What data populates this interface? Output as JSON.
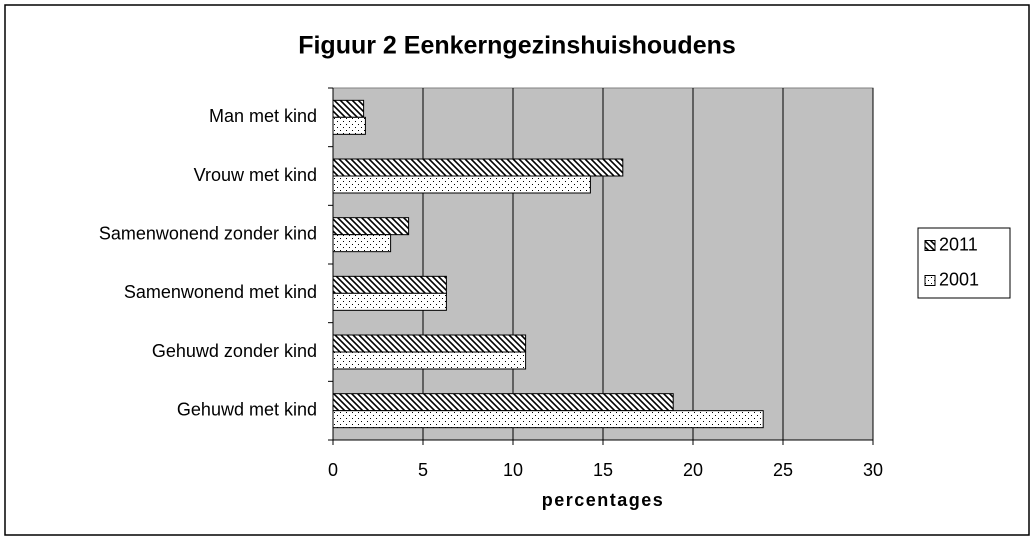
{
  "chart_data": {
    "type": "barh",
    "title": "Figuur 2 Eenkerngezinshuishoudens",
    "xlabel": "percentages",
    "categories": [
      "Man met kind",
      "Vrouw met kind",
      "Samenwonend zonder kind",
      "Samenwonend met kind",
      "Gehuwd zonder kind",
      "Gehuwd met kind"
    ],
    "series": [
      {
        "name": "2011",
        "color": "#000000",
        "pattern": "hatch",
        "values": [
          1.7,
          16.1,
          4.2,
          6.3,
          10.7,
          18.9
        ]
      },
      {
        "name": "2001",
        "color": "#000000",
        "pattern": "dots",
        "values": [
          1.8,
          14.3,
          3.2,
          6.3,
          10.7,
          23.9
        ]
      }
    ],
    "xlim": [
      0,
      30
    ],
    "xticks": [
      0,
      5,
      10,
      15,
      20,
      25,
      30
    ],
    "grid": true,
    "plot_background": "#c0c0c0",
    "legend": "right"
  }
}
